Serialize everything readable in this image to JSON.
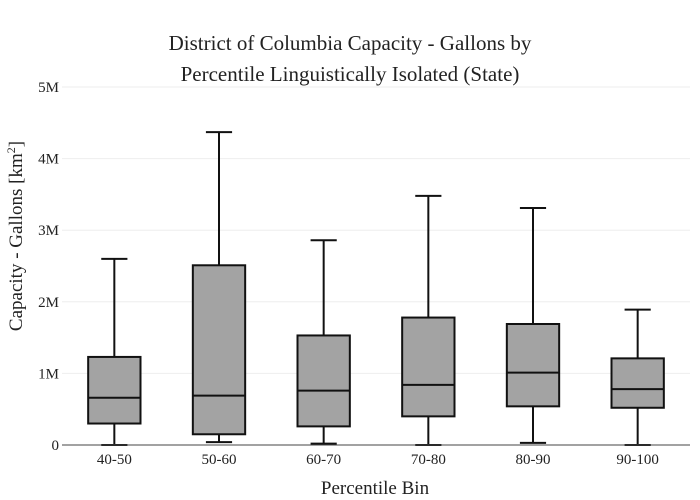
{
  "chart_data": {
    "type": "box",
    "title_line1": "District of Columbia Capacity - Gallons by",
    "title_line2": "Percentile Linguistically Isolated (State)",
    "xlabel": "Percentile Bin",
    "ylabel": "Capacity - Gallons  [km",
    "ylabel_sup": "2",
    "ylabel_end": "]",
    "ylim": [
      0,
      5000000
    ],
    "yticks": [
      {
        "value": 0,
        "label": "0"
      },
      {
        "value": 1000000,
        "label": "1M"
      },
      {
        "value": 2000000,
        "label": "2M"
      },
      {
        "value": 3000000,
        "label": "3M"
      },
      {
        "value": 4000000,
        "label": "4M"
      },
      {
        "value": 5000000,
        "label": "5M"
      }
    ],
    "grid": true,
    "fill_color": "#a3a3a3",
    "line_color": "#111111",
    "categories": [
      "40-50",
      "50-60",
      "60-70",
      "70-80",
      "80-90",
      "90-100"
    ],
    "boxes": [
      {
        "min": 0,
        "q1": 300000,
        "median": 660000,
        "q3": 1230000,
        "max": 2600000
      },
      {
        "min": 40000,
        "q1": 150000,
        "median": 690000,
        "q3": 2510000,
        "max": 4370000
      },
      {
        "min": 20000,
        "q1": 260000,
        "median": 760000,
        "q3": 1530000,
        "max": 2860000
      },
      {
        "min": 0,
        "q1": 400000,
        "median": 840000,
        "q3": 1780000,
        "max": 3480000
      },
      {
        "min": 30000,
        "q1": 540000,
        "median": 1010000,
        "q3": 1690000,
        "max": 3310000
      },
      {
        "min": 0,
        "q1": 520000,
        "median": 780000,
        "q3": 1210000,
        "max": 1890000
      }
    ]
  }
}
